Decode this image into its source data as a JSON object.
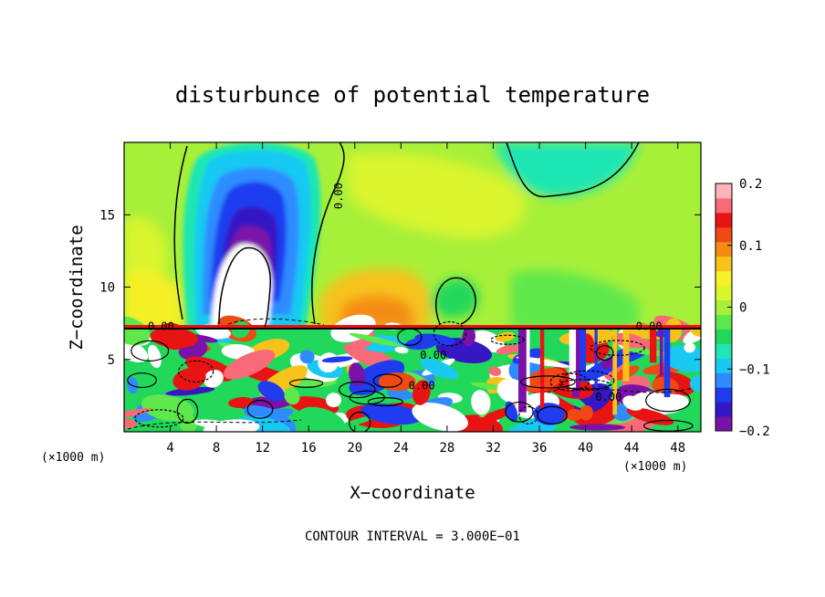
{
  "chart_data": {
    "type": "heatmap",
    "title": "disturbunce of potential temperature",
    "xlabel": "X−coordinate",
    "ylabel": "Z−coordinate",
    "x_unit": "(×1000 m)",
    "x_unit_right": "(×1000 m)",
    "footer": "CONTOUR INTERVAL = 3.000E−01",
    "xlim": [
      0,
      50
    ],
    "ylim": [
      0,
      20
    ],
    "x_ticks": [
      "4",
      "8",
      "12",
      "16",
      "20",
      "24",
      "28",
      "32",
      "36",
      "40",
      "44",
      "48"
    ],
    "y_ticks": [
      "5",
      "10",
      "15"
    ],
    "colorbar": {
      "range": [
        -0.2,
        0.2
      ],
      "tick_labels": [
        "0.2",
        "0.1",
        "0",
        "−0.1",
        "−0.2"
      ],
      "tick_values": [
        0.2,
        0.1,
        0,
        -0.1,
        -0.2
      ],
      "colors": [
        "#7a12a8",
        "#3518c4",
        "#1f3cf0",
        "#2f8cff",
        "#19c9f2",
        "#1fe6b4",
        "#22d85a",
        "#5ee84b",
        "#a7f03a",
        "#d8f52e",
        "#f5f028",
        "#f7c21a",
        "#f48c14",
        "#f04a14",
        "#e81414",
        "#f86a78",
        "#ffb2b8"
      ]
    },
    "contour_labels": [
      {
        "text": "0.00",
        "x": 18.6,
        "z": 16.3
      },
      {
        "text": "0.00",
        "x": 3.2,
        "z": 7.3
      },
      {
        "text": "0.00",
        "x": 45.5,
        "z": 7.3
      },
      {
        "text": "0.00",
        "x": 26.8,
        "z": 5.3
      },
      {
        "text": "0.00",
        "x": 25.8,
        "z": 3.2
      },
      {
        "text": "0.00",
        "x": 42.0,
        "z": 2.4
      }
    ],
    "features": [
      {
        "kind": "cold_plume",
        "x": 12.0,
        "z": 14.0,
        "value": -0.2
      },
      {
        "kind": "warm_core",
        "x": 10.5,
        "z": 9.5,
        "value": 0.2
      },
      {
        "kind": "warm_region",
        "x": 24.0,
        "z": 9.5,
        "value": 0.1
      },
      {
        "kind": "cool_region_top",
        "x": 40.0,
        "z": 19.5,
        "value": -0.05
      },
      {
        "kind": "turbulent_layer",
        "x_range": [
          0,
          50
        ],
        "z_range": [
          0,
          7.3
        ],
        "value_range": [
          -0.2,
          0.2
        ]
      }
    ]
  }
}
